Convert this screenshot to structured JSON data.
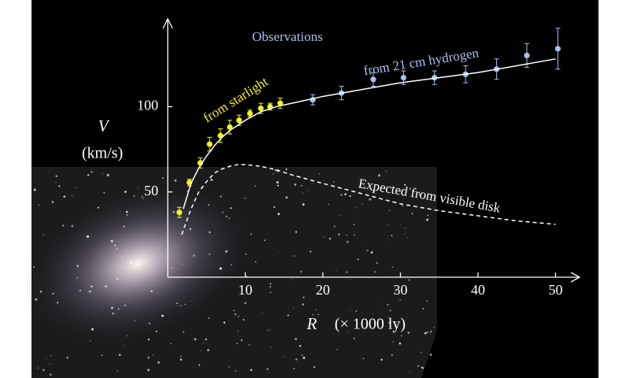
{
  "chart_data": {
    "type": "scatter",
    "title": "Observations",
    "y_label": "V",
    "y_unit": "(km/s)",
    "x_label": "R",
    "x_unit": "(× 1000 ly)",
    "xlim": [
      0,
      53
    ],
    "ylim": [
      0,
      151
    ],
    "xticks": [
      10,
      20,
      30,
      40,
      50
    ],
    "yticks": [
      50,
      100
    ],
    "series": [
      {
        "name": "from starlight",
        "color": "#f2f21e",
        "mode": "markers",
        "x": [
          1.5,
          2.8,
          4.2,
          5.4,
          6.8,
          8,
          9.2,
          10.6,
          12,
          13.2,
          14.5
        ],
        "values": [
          38,
          55.5,
          67,
          78,
          83,
          88,
          92,
          96,
          99,
          100,
          102
        ],
        "errors": [
          3,
          2,
          3,
          4,
          4,
          4,
          3,
          2,
          3,
          2,
          3
        ]
      },
      {
        "name": "from 21 cm hydrogen",
        "color": "#a8c0f0",
        "mode": "markers",
        "x": [
          18.7,
          22.4,
          26.5,
          30.4,
          34.4,
          38.4,
          42.4,
          46.3,
          50.3
        ],
        "values": [
          104,
          108,
          116,
          117,
          117,
          119,
          122,
          130,
          134
        ],
        "errors": [
          3,
          4,
          4,
          4,
          4,
          5,
          6,
          7,
          12
        ]
      },
      {
        "color": "#ffffff",
        "mode": "line",
        "x": [
          2,
          3,
          4,
          5,
          6,
          7,
          8,
          10,
          12,
          14,
          16,
          20,
          25,
          30,
          35,
          40,
          45,
          50
        ],
        "values": [
          40,
          55,
          64,
          71,
          77,
          82,
          86,
          92,
          97,
          100,
          102,
          106,
          110,
          114,
          117,
          120,
          124,
          128
        ]
      },
      {
        "name": "Expected from visible disk",
        "color": "#ffffff",
        "mode": "dashed",
        "x": [
          1.8,
          3,
          4,
          5,
          6,
          7,
          8,
          9,
          10,
          12,
          14,
          16,
          20,
          25,
          30,
          35,
          40,
          45,
          50
        ],
        "values": [
          25,
          40,
          50,
          56,
          61,
          63.5,
          65,
          66,
          66,
          65,
          63,
          60,
          55,
          49,
          43,
          39,
          36,
          33,
          31
        ]
      }
    ]
  }
}
